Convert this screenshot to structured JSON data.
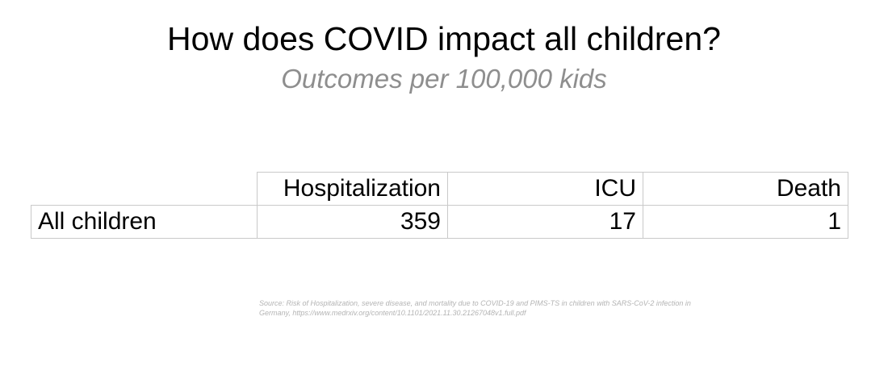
{
  "chart_data": {
    "type": "table",
    "title": "How does COVID impact all children?",
    "subtitle": "Outcomes per 100,000 kids",
    "columns": [
      "Hospitalization",
      "ICU",
      "Death"
    ],
    "rows": [
      {
        "label": "All children",
        "values": [
          "359",
          "17",
          "1"
        ]
      }
    ],
    "source": "Source: Risk of Hospitalization, severe disease, and mortality due to COVID-19 and PIMS-TS in children with SARS-CoV-2 infection in Germany, https://www.medrxiv.org/content/10.1101/2021.11.30.21267048v1.full.pdf"
  },
  "colors": {
    "title": "#000000",
    "subtitle": "#8e8e8e",
    "grid": "#c9c9c9",
    "source": "#b4b4b4"
  }
}
